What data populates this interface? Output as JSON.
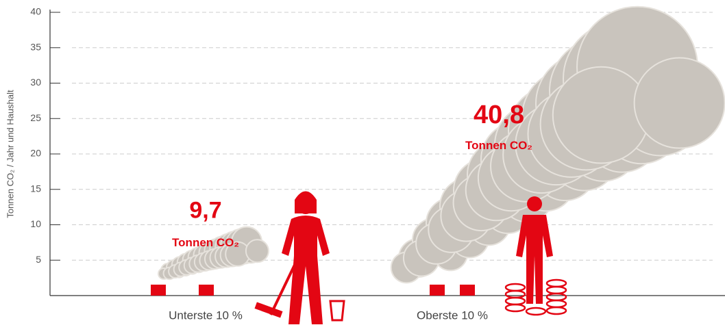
{
  "chart_data": {
    "type": "smoke",
    "y_label": "Tonnen CO₂ / Jahr und Haushalt",
    "categories": [
      "Unterste 10 %",
      "Oberste 10 %"
    ],
    "values": [
      9.7,
      40.8
    ],
    "value_labels": [
      "9,7",
      "40,8"
    ],
    "unit_label": "Tonnen CO₂",
    "color": "#e30613",
    "smoke_color": "#c9c4bd",
    "ylim": [
      0,
      40
    ],
    "yticks": [
      5,
      10,
      15,
      20,
      25,
      30,
      35,
      40
    ],
    "grid": true
  }
}
